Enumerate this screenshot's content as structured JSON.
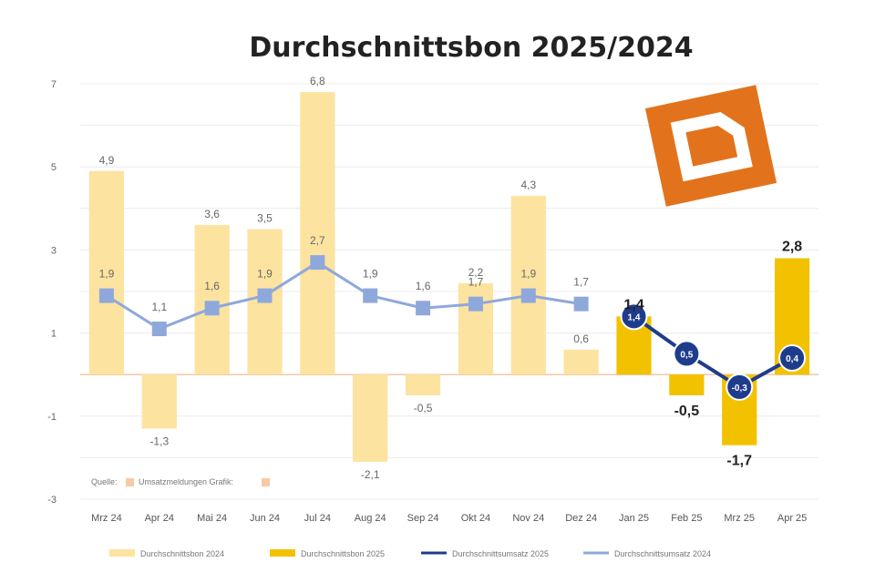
{
  "chart_data": {
    "type": "bar",
    "title": "Durchschnittsbon 2025/2024",
    "categories": [
      "Mrz 24",
      "Apr 24",
      "Mai 24",
      "Jun 24",
      "Jul 24",
      "Aug 24",
      "Sep 24",
      "Okt 24",
      "Nov 24",
      "Dez 24",
      "Jan 25",
      "Feb 25",
      "Mrz 25",
      "Apr 25"
    ],
    "ylim": [
      -3,
      7
    ],
    "yticks": [
      "7",
      "5",
      "3",
      "1",
      "-1",
      "-3"
    ],
    "yticks_values": [
      7,
      5,
      3,
      1,
      -1,
      -3
    ],
    "grid": true,
    "legend_position": "bottom",
    "series": [
      {
        "name": "Durchschnittsbon 2024",
        "type": "bar",
        "color": "#FCE3A0",
        "values": [
          4.9,
          -1.3,
          3.6,
          3.5,
          6.8,
          -2.1,
          -0.5,
          2.2,
          4.3,
          0.6,
          null,
          null,
          null,
          null
        ],
        "labels": [
          "4,9",
          "-1,3",
          "3,6",
          "3,5",
          "6,8",
          "-2,1",
          "-0,5",
          "2,2",
          "4,3",
          "0,6",
          "",
          "",
          "",
          ""
        ]
      },
      {
        "name": "Durchschnittsbon 2025",
        "type": "bar",
        "color": "#F2C200",
        "values": [
          null,
          null,
          null,
          null,
          null,
          null,
          null,
          null,
          null,
          null,
          1.4,
          -0.5,
          -1.7,
          2.8
        ],
        "labels": [
          "",
          "",
          "",
          "",
          "",
          "",
          "",
          "",
          "",
          "",
          "1,4",
          "-0,5",
          "-1,7",
          "2,8"
        ]
      },
      {
        "name": "Durchschnittsumsatz 2025",
        "type": "line",
        "color": "#1F3C8C",
        "values": [
          null,
          null,
          null,
          null,
          null,
          null,
          null,
          null,
          null,
          null,
          1.4,
          0.5,
          -0.3,
          0.4
        ],
        "labels": [
          "",
          "",
          "",
          "",
          "",
          "",
          "",
          "",
          "",
          "",
          "1,4",
          "0,5",
          "-0,3",
          "0,4"
        ]
      },
      {
        "name": "Durchschnittsumsatz 2024",
        "type": "line",
        "color": "#8FA8DC",
        "values": [
          1.9,
          1.1,
          1.6,
          1.9,
          2.7,
          1.9,
          1.6,
          1.7,
          1.9,
          1.7,
          null,
          null,
          null,
          null
        ],
        "labels": [
          "1,9",
          "1,1",
          "1,6",
          "1,9",
          "2,7",
          "1,9",
          "1,6",
          "1,7",
          "1,9",
          "1,7",
          "",
          "",
          "",
          ""
        ]
      }
    ],
    "note": {
      "label": "Quelle:",
      "value": "Umsatzmeldungen Grafik:"
    },
    "logo": {
      "name": "ld-logo",
      "color": "#E2731C"
    }
  }
}
